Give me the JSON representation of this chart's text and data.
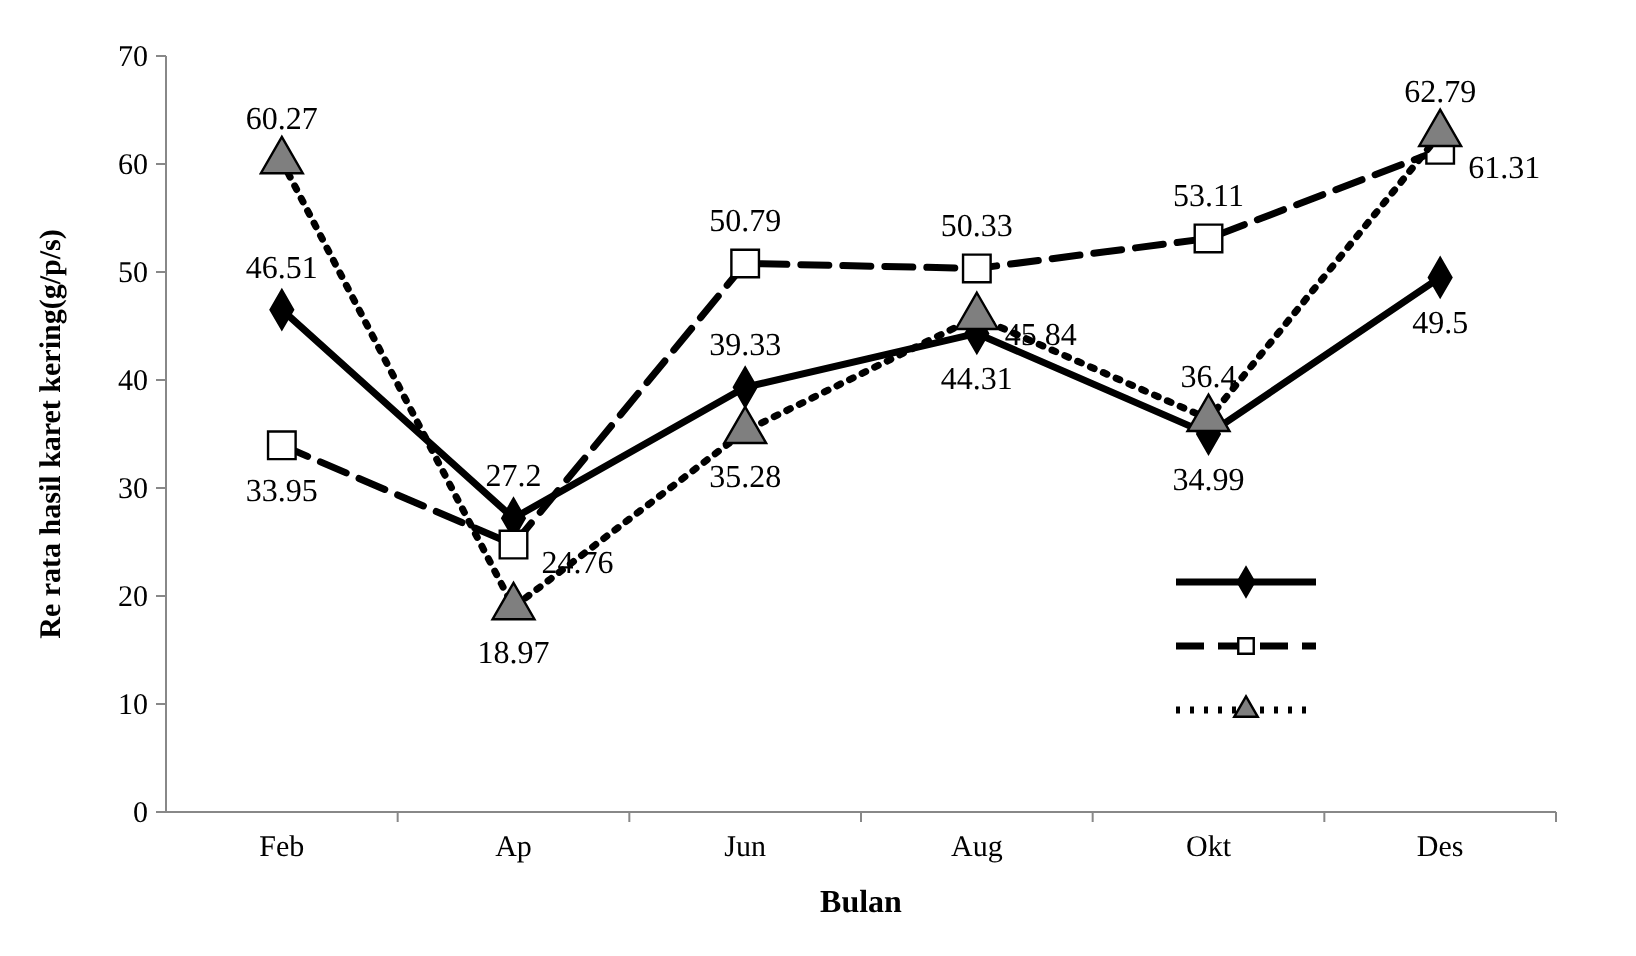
{
  "chart_data": {
    "type": "line",
    "xlabel": "Bulan",
    "ylabel": "Re rata hasil karet kering(g/p/s)",
    "categories": [
      "Feb",
      "Ap",
      "Jun",
      "Aug",
      "Okt",
      "Des"
    ],
    "series": [
      {
        "color": "#000000",
        "marker": "diamond",
        "line_style": "solid",
        "values": [
          46.51,
          27.2,
          39.33,
          44.31,
          34.99,
          49.5
        ]
      },
      {
        "color": "#000000",
        "marker": "square",
        "line_style": "dashed",
        "values": [
          33.95,
          24.76,
          50.79,
          50.33,
          53.11,
          61.31
        ]
      },
      {
        "color": "#000000",
        "marker": "triangle",
        "line_style": "dotted",
        "values": [
          60.27,
          18.97,
          35.28,
          45.84,
          36.4,
          62.79
        ]
      }
    ],
    "ylim": [
      0,
      70
    ],
    "yticks": [
      0,
      10,
      20,
      30,
      40,
      50,
      60,
      70
    ],
    "grid": false,
    "data_labels": true
  }
}
